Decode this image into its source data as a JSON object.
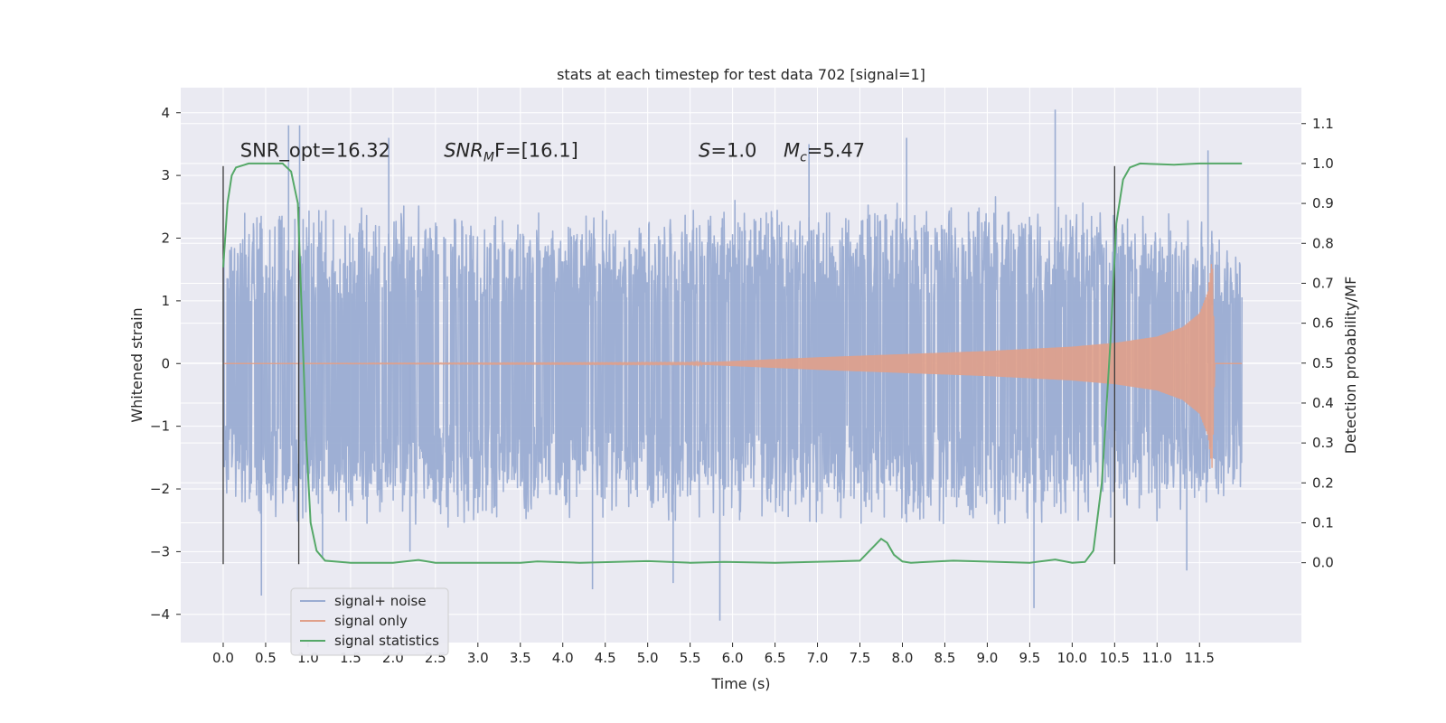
{
  "chart_data": {
    "type": "line",
    "title": "stats at each timestep for test data 702 [signal=1]",
    "xlabel": "Time (s)",
    "ylabel": "Whitened strain",
    "y2label": "Detection probability/MF",
    "xlim": [
      -0.5,
      12.7
    ],
    "ylim": [
      -4.45,
      4.4
    ],
    "y2lim": [
      -0.2,
      1.19
    ],
    "x_ticks": [
      0.0,
      0.5,
      1.0,
      1.5,
      2.0,
      2.5,
      3.0,
      3.5,
      4.0,
      4.5,
      5.0,
      5.5,
      6.0,
      6.5,
      7.0,
      7.5,
      8.0,
      8.5,
      9.0,
      9.5,
      10.0,
      10.5,
      11.0,
      11.5
    ],
    "x_tick_labels": [
      "0.0",
      "0.5",
      "1.0",
      "1.5",
      "2.0",
      "2.5",
      "3.0",
      "3.5",
      "4.0",
      "4.5",
      "5.0",
      "5.5",
      "6.0",
      "6.5",
      "7.0",
      "7.5",
      "8.0",
      "8.5",
      "9.0",
      "9.5",
      "10.0",
      "10.5",
      "11.0",
      "11.5"
    ],
    "y_ticks": [
      -4,
      -3,
      -2,
      -1,
      0,
      1,
      2,
      3,
      4
    ],
    "y_tick_labels": [
      "−4",
      "−3",
      "−2",
      "−1",
      "0",
      "1",
      "2",
      "3",
      "4"
    ],
    "y2_ticks": [
      0.0,
      0.1,
      0.2,
      0.3,
      0.4,
      0.5,
      0.6,
      0.7,
      0.8,
      0.9,
      1.0,
      1.1
    ],
    "y2_tick_labels": [
      "0.0",
      "0.1",
      "0.2",
      "0.3",
      "0.4",
      "0.5",
      "0.6",
      "0.7",
      "0.8",
      "0.9",
      "1.0",
      "1.1"
    ],
    "grid": true,
    "legend_position": "lower-left",
    "annotations": [
      {
        "text_parts": [
          "SNR_opt=16.32"
        ],
        "x": 0.2,
        "y2": 1.017
      },
      {
        "text_parts": [
          "SNR",
          "M",
          "F=[16.1]"
        ],
        "x": 2.6,
        "y2": 1.017
      },
      {
        "text_parts": [
          "S",
          "=1.0"
        ],
        "x": 5.6,
        "y2": 1.017
      },
      {
        "text_parts": [
          "M",
          "c",
          "=5.47"
        ],
        "x": 6.6,
        "y2": 1.017
      }
    ],
    "vlines": [
      {
        "x": 0.0,
        "y": [
          -3.2,
          3.15
        ]
      },
      {
        "x": 0.89,
        "y": [
          -3.2,
          2.5
        ]
      },
      {
        "x": 10.5,
        "y": [
          -3.2,
          3.15
        ]
      }
    ],
    "series": [
      {
        "name": "signal+ noise",
        "color": "#9aacd2",
        "axis": "left",
        "t_range": [
          0.0,
          12.0
        ],
        "envelope_upper": [
          [
            0.0,
            1.9
          ],
          [
            0.5,
            2.3
          ],
          [
            1.0,
            2.2
          ],
          [
            2.0,
            2.3
          ],
          [
            3.0,
            2.3
          ],
          [
            4.0,
            2.2
          ],
          [
            5.0,
            2.2
          ],
          [
            6.0,
            2.3
          ],
          [
            7.0,
            2.3
          ],
          [
            8.0,
            2.3
          ],
          [
            9.0,
            2.4
          ],
          [
            10.0,
            2.3
          ],
          [
            11.0,
            2.2
          ],
          [
            12.0,
            1.9
          ]
        ],
        "envelope_lower": [
          [
            0.0,
            -1.9
          ],
          [
            0.5,
            -2.3
          ],
          [
            1.0,
            -2.3
          ],
          [
            2.0,
            -2.3
          ],
          [
            3.0,
            -2.3
          ],
          [
            4.0,
            -2.2
          ],
          [
            5.0,
            -2.2
          ],
          [
            6.0,
            -2.3
          ],
          [
            7.0,
            -2.3
          ],
          [
            8.0,
            -2.3
          ],
          [
            9.0,
            -2.4
          ],
          [
            10.0,
            -2.3
          ],
          [
            11.0,
            -2.2
          ],
          [
            12.0,
            -1.9
          ]
        ],
        "spikes": [
          [
            0.45,
            -3.7
          ],
          [
            0.77,
            3.8
          ],
          [
            0.9,
            3.8
          ],
          [
            1.17,
            -3.1
          ],
          [
            1.95,
            3.6
          ],
          [
            2.2,
            -3.0
          ],
          [
            4.35,
            -3.6
          ],
          [
            5.3,
            -3.5
          ],
          [
            5.85,
            -4.1
          ],
          [
            6.9,
            3.5
          ],
          [
            8.05,
            3.6
          ],
          [
            9.55,
            -3.9
          ],
          [
            9.8,
            4.05
          ],
          [
            11.35,
            -3.3
          ],
          [
            11.6,
            3.4
          ]
        ]
      },
      {
        "name": "signal only",
        "color": "#e0a08a",
        "axis": "left",
        "envelope": [
          [
            0.0,
            0.0
          ],
          [
            5.5,
            0.01
          ],
          [
            6.0,
            0.04
          ],
          [
            7.0,
            0.1
          ],
          [
            8.0,
            0.15
          ],
          [
            9.0,
            0.2
          ],
          [
            10.0,
            0.27
          ],
          [
            10.5,
            0.33
          ],
          [
            11.0,
            0.43
          ],
          [
            11.3,
            0.58
          ],
          [
            11.5,
            0.8
          ],
          [
            11.6,
            1.15
          ],
          [
            11.65,
            1.7
          ],
          [
            11.68,
            0.0
          ],
          [
            12.0,
            0.0
          ]
        ]
      },
      {
        "name": "signal statistics",
        "color": "#55a868",
        "axis": "right",
        "points": [
          [
            0.0,
            0.74
          ],
          [
            0.05,
            0.9
          ],
          [
            0.1,
            0.97
          ],
          [
            0.15,
            0.99
          ],
          [
            0.3,
            1.0
          ],
          [
            0.7,
            1.0
          ],
          [
            0.8,
            0.98
          ],
          [
            0.88,
            0.9
          ],
          [
            0.93,
            0.6
          ],
          [
            0.98,
            0.3
          ],
          [
            1.03,
            0.1
          ],
          [
            1.1,
            0.03
          ],
          [
            1.2,
            0.005
          ],
          [
            1.5,
            0.0
          ],
          [
            2.0,
            0.0
          ],
          [
            2.3,
            0.007
          ],
          [
            2.5,
            0.0
          ],
          [
            3.5,
            0.0
          ],
          [
            3.7,
            0.003
          ],
          [
            4.2,
            0.0
          ],
          [
            5.0,
            0.004
          ],
          [
            5.5,
            0.0
          ],
          [
            5.9,
            0.002
          ],
          [
            6.5,
            0.0
          ],
          [
            7.2,
            0.003
          ],
          [
            7.5,
            0.005
          ],
          [
            7.75,
            0.06
          ],
          [
            7.82,
            0.05
          ],
          [
            7.9,
            0.02
          ],
          [
            8.0,
            0.003
          ],
          [
            8.1,
            0.0
          ],
          [
            8.6,
            0.005
          ],
          [
            9.5,
            0.0
          ],
          [
            9.8,
            0.008
          ],
          [
            10.0,
            0.0
          ],
          [
            10.15,
            0.002
          ],
          [
            10.25,
            0.03
          ],
          [
            10.35,
            0.2
          ],
          [
            10.45,
            0.55
          ],
          [
            10.52,
            0.85
          ],
          [
            10.6,
            0.96
          ],
          [
            10.68,
            0.99
          ],
          [
            10.8,
            1.0
          ],
          [
            11.2,
            0.997
          ],
          [
            11.5,
            1.0
          ],
          [
            12.0,
            1.0
          ]
        ]
      }
    ]
  }
}
